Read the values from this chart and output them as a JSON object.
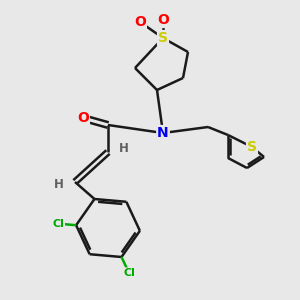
{
  "background_color": "#e8e8e8",
  "bond_color": "#1a1a1a",
  "atom_colors": {
    "O": "#ff0000",
    "N": "#0000ee",
    "S": "#cccc00",
    "Cl": "#00aa00",
    "C": "#1a1a1a",
    "H": "#606060"
  },
  "figsize": [
    3.0,
    3.0
  ],
  "dpi": 100
}
